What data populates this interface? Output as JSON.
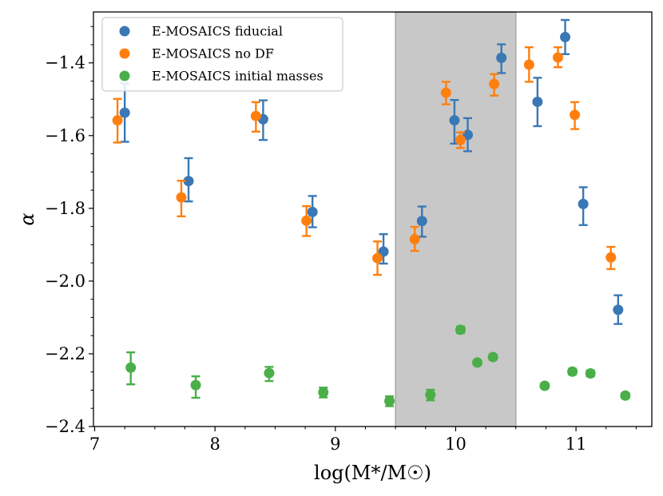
{
  "chart_data": {
    "type": "scatter",
    "title": "",
    "xlabel": "log(M*/M☉)",
    "ylabel": "α",
    "xlim": [
      6.99,
      11.63
    ],
    "ylim": [
      -2.4,
      -1.26
    ],
    "x_ticks": [
      7,
      8,
      9,
      10,
      11
    ],
    "y_ticks": [
      -2.4,
      -2.2,
      -2.0,
      -1.8,
      -1.6,
      -1.4
    ],
    "x_tick_labels": [
      "7",
      "8",
      "9",
      "10",
      "11"
    ],
    "y_tick_labels": [
      "−2.4",
      "−2.2",
      "−2.0",
      "−1.8",
      "−1.6",
      "−1.4"
    ],
    "shaded_band": {
      "x0": 9.5,
      "x1": 10.5,
      "color": "#c8c8c8"
    },
    "legend_position": "top-left",
    "series": [
      {
        "name": "E-MOSAICS fiducial",
        "color": "#3a78b5",
        "points": [
          {
            "x": 7.25,
            "y": -1.537,
            "lo": -1.617,
            "hi": -1.457
          },
          {
            "x": 7.78,
            "y": -1.725,
            "lo": -1.781,
            "hi": -1.662
          },
          {
            "x": 8.4,
            "y": -1.555,
            "lo": -1.612,
            "hi": -1.503
          },
          {
            "x": 8.81,
            "y": -1.81,
            "lo": -1.852,
            "hi": -1.766
          },
          {
            "x": 9.4,
            "y": -1.919,
            "lo": -1.952,
            "hi": -1.871
          },
          {
            "x": 9.72,
            "y": -1.835,
            "lo": -1.878,
            "hi": -1.795
          },
          {
            "x": 9.99,
            "y": -1.558,
            "lo": -1.622,
            "hi": -1.502
          },
          {
            "x": 10.1,
            "y": -1.598,
            "lo": -1.643,
            "hi": -1.552
          },
          {
            "x": 10.38,
            "y": -1.386,
            "lo": -1.428,
            "hi": -1.349
          },
          {
            "x": 10.68,
            "y": -1.507,
            "lo": -1.574,
            "hi": -1.441
          },
          {
            "x": 10.91,
            "y": -1.329,
            "lo": -1.376,
            "hi": -1.282
          },
          {
            "x": 11.06,
            "y": -1.788,
            "lo": -1.846,
            "hi": -1.742
          },
          {
            "x": 11.35,
            "y": -2.079,
            "lo": -2.118,
            "hi": -2.039
          }
        ]
      },
      {
        "name": "E-MOSAICS no DF",
        "color": "#ff7f0e",
        "points": [
          {
            "x": 7.19,
            "y": -1.558,
            "lo": -1.619,
            "hi": -1.499
          },
          {
            "x": 7.72,
            "y": -1.77,
            "lo": -1.822,
            "hi": -1.724
          },
          {
            "x": 8.34,
            "y": -1.546,
            "lo": -1.589,
            "hi": -1.508
          },
          {
            "x": 8.76,
            "y": -1.834,
            "lo": -1.876,
            "hi": -1.794
          },
          {
            "x": 9.35,
            "y": -1.937,
            "lo": -1.983,
            "hi": -1.891
          },
          {
            "x": 9.66,
            "y": -1.885,
            "lo": -1.917,
            "hi": -1.851
          },
          {
            "x": 9.92,
            "y": -1.482,
            "lo": -1.514,
            "hi": -1.452
          },
          {
            "x": 10.04,
            "y": -1.612,
            "lo": -1.634,
            "hi": -1.591
          },
          {
            "x": 10.32,
            "y": -1.458,
            "lo": -1.49,
            "hi": -1.431
          },
          {
            "x": 10.61,
            "y": -1.405,
            "lo": -1.452,
            "hi": -1.357
          },
          {
            "x": 10.85,
            "y": -1.385,
            "lo": -1.412,
            "hi": -1.357
          },
          {
            "x": 10.99,
            "y": -1.543,
            "lo": -1.582,
            "hi": -1.508
          },
          {
            "x": 11.29,
            "y": -1.935,
            "lo": -1.967,
            "hi": -1.906
          }
        ]
      },
      {
        "name": "E-MOSAICS initial masses",
        "color": "#4aaf48",
        "points": [
          {
            "x": 7.3,
            "y": -2.238,
            "lo": -2.284,
            "hi": -2.196
          },
          {
            "x": 7.84,
            "y": -2.286,
            "lo": -2.321,
            "hi": -2.262
          },
          {
            "x": 8.45,
            "y": -2.253,
            "lo": -2.275,
            "hi": -2.236
          },
          {
            "x": 8.9,
            "y": -2.306,
            "lo": -2.32,
            "hi": -2.293
          },
          {
            "x": 9.45,
            "y": -2.33,
            "lo": -2.344,
            "hi": -2.317
          },
          {
            "x": 9.79,
            "y": -2.313,
            "lo": -2.328,
            "hi": -2.299
          },
          {
            "x": 10.04,
            "y": -2.134,
            "lo": -2.143,
            "hi": -2.125
          },
          {
            "x": 10.18,
            "y": -2.224,
            "lo": -2.231,
            "hi": -2.217
          },
          {
            "x": 10.31,
            "y": -2.209,
            "lo": -2.216,
            "hi": -2.202
          },
          {
            "x": 10.74,
            "y": -2.288,
            "lo": -2.295,
            "hi": -2.281
          },
          {
            "x": 10.97,
            "y": -2.249,
            "lo": -2.257,
            "hi": -2.241
          },
          {
            "x": 11.12,
            "y": -2.254,
            "lo": -2.262,
            "hi": -2.246
          },
          {
            "x": 11.41,
            "y": -2.315,
            "lo": -2.322,
            "hi": -2.308
          }
        ]
      }
    ]
  }
}
